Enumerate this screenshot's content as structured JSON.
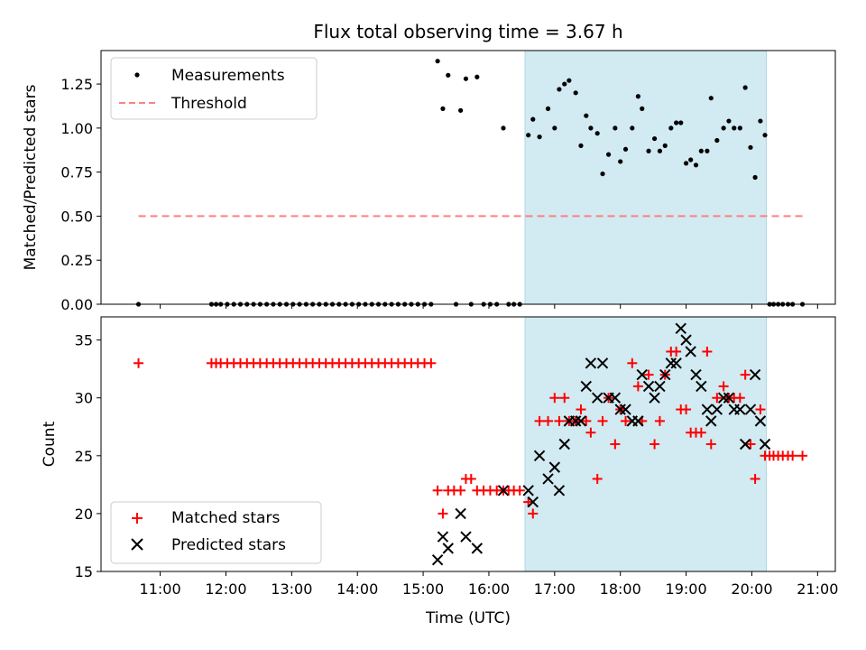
{
  "chart_data": [
    {
      "type": "scatter",
      "title": "Flux total observing time = 3.67 h",
      "ylabel": "Matched/Predicted stars",
      "xlabel": "",
      "xlim": [
        10.1,
        21.27
      ],
      "ylim": [
        0.0,
        1.44
      ],
      "yticks": [
        0.0,
        0.25,
        0.5,
        0.75,
        1.0,
        1.25
      ],
      "ytick_labels": [
        "0.00",
        "0.25",
        "0.50",
        "0.75",
        "1.00",
        "1.25"
      ],
      "grid": false,
      "legend_position": "upper-left",
      "shaded_interval": {
        "start": 16.55,
        "end": 20.22,
        "color": "#add8e6"
      },
      "series": [
        {
          "name": "Measurements",
          "marker": "dot",
          "color": "#000000",
          "x": [
            10.67,
            11.78,
            11.85,
            11.92,
            12.02,
            12.12,
            12.22,
            12.32,
            12.42,
            12.52,
            12.62,
            12.72,
            12.82,
            12.92,
            13.02,
            13.12,
            13.22,
            13.32,
            13.42,
            13.52,
            13.62,
            13.72,
            13.82,
            13.92,
            14.02,
            14.12,
            14.22,
            14.32,
            14.42,
            14.52,
            14.62,
            14.72,
            14.82,
            14.92,
            15.02,
            15.12,
            15.22,
            15.3,
            15.38,
            15.5,
            15.57,
            15.65,
            15.73,
            15.82,
            15.92,
            16.02,
            16.12,
            16.22,
            16.3,
            16.38,
            16.47,
            16.6,
            16.67,
            16.77,
            16.9,
            17.0,
            17.07,
            17.15,
            17.22,
            17.32,
            17.4,
            17.48,
            17.55,
            17.65,
            17.73,
            17.82,
            17.92,
            18.0,
            18.08,
            18.18,
            18.27,
            18.33,
            18.43,
            18.52,
            18.6,
            18.68,
            18.77,
            18.85,
            18.92,
            19.0,
            19.07,
            19.15,
            19.23,
            19.32,
            19.38,
            19.47,
            19.57,
            19.65,
            19.73,
            19.82,
            19.9,
            19.98,
            20.05,
            20.13,
            20.2,
            20.27,
            20.33,
            20.4,
            20.47,
            20.55,
            20.62,
            20.77
          ],
          "y": [
            0,
            0,
            0,
            0,
            0,
            0,
            0,
            0,
            0,
            0,
            0,
            0,
            0,
            0,
            0,
            0,
            0,
            0,
            0,
            0,
            0,
            0,
            0,
            0,
            0,
            0,
            0,
            0,
            0,
            0,
            0,
            0,
            0,
            0,
            0,
            0,
            1.38,
            1.11,
            1.3,
            0,
            1.1,
            1.28,
            0,
            1.29,
            0,
            0,
            0,
            1.0,
            0,
            0,
            0,
            0.96,
            1.05,
            0.95,
            1.11,
            1.0,
            1.22,
            1.25,
            1.27,
            1.2,
            0.9,
            1.07,
            1.0,
            0.97,
            0.74,
            0.85,
            1.0,
            0.81,
            0.88,
            1.0,
            1.18,
            1.11,
            0.87,
            0.94,
            0.87,
            0.9,
            1.0,
            1.03,
            1.03,
            0.8,
            0.82,
            0.79,
            0.87,
            0.87,
            1.17,
            0.93,
            1.0,
            1.04,
            1.0,
            1.0,
            1.23,
            0.89,
            0.72,
            1.04,
            0.96,
            0,
            0,
            0,
            0,
            0,
            0,
            0
          ]
        },
        {
          "name": "Threshold",
          "type": "line",
          "style": "dashed",
          "color": "#ff7f7f",
          "x": [
            10.67,
            20.77
          ],
          "y": [
            0.5,
            0.5
          ]
        }
      ]
    },
    {
      "type": "scatter",
      "title": "",
      "ylabel": "Count",
      "xlabel": "Time (UTC)",
      "xlim": [
        10.1,
        21.27
      ],
      "ylim": [
        15,
        37
      ],
      "yticks": [
        15,
        20,
        25,
        30,
        35
      ],
      "ytick_labels": [
        "15",
        "20",
        "25",
        "30",
        "35"
      ],
      "xticks": [
        11,
        12,
        13,
        14,
        15,
        16,
        17,
        18,
        19,
        20,
        21
      ],
      "xtick_labels": [
        "11:00",
        "12:00",
        "13:00",
        "14:00",
        "15:00",
        "16:00",
        "17:00",
        "18:00",
        "19:00",
        "20:00",
        "21:00"
      ],
      "grid": false,
      "legend_position": "lower-left",
      "shaded_interval": {
        "start": 16.55,
        "end": 20.22,
        "color": "#add8e6"
      },
      "series": [
        {
          "name": "Matched stars",
          "marker": "plus",
          "color": "#ff0000",
          "x": [
            10.67,
            11.78,
            11.85,
            11.92,
            12.02,
            12.12,
            12.22,
            12.32,
            12.42,
            12.52,
            12.62,
            12.72,
            12.82,
            12.92,
            13.02,
            13.12,
            13.22,
            13.32,
            13.42,
            13.52,
            13.62,
            13.72,
            13.82,
            13.92,
            14.02,
            14.12,
            14.22,
            14.32,
            14.42,
            14.52,
            14.62,
            14.72,
            14.82,
            14.92,
            15.02,
            15.12,
            15.22,
            15.3,
            15.38,
            15.47,
            15.57,
            15.65,
            15.73,
            15.82,
            15.92,
            16.02,
            16.12,
            16.22,
            16.3,
            16.38,
            16.47,
            16.6,
            16.67,
            16.77,
            16.9,
            17.0,
            17.07,
            17.15,
            17.22,
            17.32,
            17.4,
            17.48,
            17.55,
            17.65,
            17.73,
            17.82,
            17.92,
            18.0,
            18.08,
            18.18,
            18.27,
            18.33,
            18.43,
            18.52,
            18.6,
            18.68,
            18.77,
            18.85,
            18.92,
            19.0,
            19.07,
            19.15,
            19.23,
            19.32,
            19.38,
            19.47,
            19.57,
            19.65,
            19.73,
            19.82,
            19.9,
            19.98,
            20.05,
            20.13,
            20.2,
            20.27,
            20.33,
            20.4,
            20.47,
            20.55,
            20.62,
            20.77
          ],
          "y": [
            33,
            33,
            33,
            33,
            33,
            33,
            33,
            33,
            33,
            33,
            33,
            33,
            33,
            33,
            33,
            33,
            33,
            33,
            33,
            33,
            33,
            33,
            33,
            33,
            33,
            33,
            33,
            33,
            33,
            33,
            33,
            33,
            33,
            33,
            33,
            33,
            22,
            20,
            22,
            22,
            22,
            23,
            23,
            22,
            22,
            22,
            22,
            22,
            22,
            22,
            22,
            21,
            20,
            28,
            28,
            30,
            28,
            30,
            28,
            28,
            29,
            28,
            27,
            23,
            28,
            30,
            26,
            29,
            28,
            33,
            31,
            28,
            32,
            26,
            28,
            32,
            34,
            34,
            29,
            29,
            27,
            27,
            27,
            34,
            26,
            30,
            31,
            30,
            30,
            30,
            32,
            26,
            23,
            29,
            25,
            25,
            25,
            25,
            25,
            25,
            25,
            25
          ]
        },
        {
          "name": "Predicted stars",
          "marker": "x",
          "color": "#000000",
          "x": [
            15.22,
            15.3,
            15.38,
            15.57,
            15.65,
            15.82,
            16.22,
            16.6,
            16.67,
            16.77,
            16.9,
            17.0,
            17.07,
            17.15,
            17.22,
            17.32,
            17.4,
            17.48,
            17.55,
            17.65,
            17.73,
            17.82,
            17.92,
            18.0,
            18.08,
            18.18,
            18.27,
            18.33,
            18.43,
            18.52,
            18.6,
            18.68,
            18.77,
            18.85,
            18.92,
            19.0,
            19.07,
            19.15,
            19.23,
            19.32,
            19.38,
            19.47,
            19.57,
            19.65,
            19.73,
            19.82,
            19.9,
            19.98,
            20.05,
            20.13,
            20.2
          ],
          "y": [
            16,
            18,
            17,
            20,
            18,
            17,
            22,
            22,
            21,
            25,
            23,
            24,
            22,
            26,
            28,
            28,
            28,
            31,
            33,
            30,
            33,
            30,
            30,
            29,
            29,
            28,
            28,
            32,
            31,
            30,
            31,
            32,
            33,
            33,
            36,
            35,
            34,
            32,
            31,
            29,
            28,
            29,
            30,
            30,
            29,
            29,
            26,
            29,
            32,
            28,
            26
          ]
        }
      ]
    }
  ]
}
